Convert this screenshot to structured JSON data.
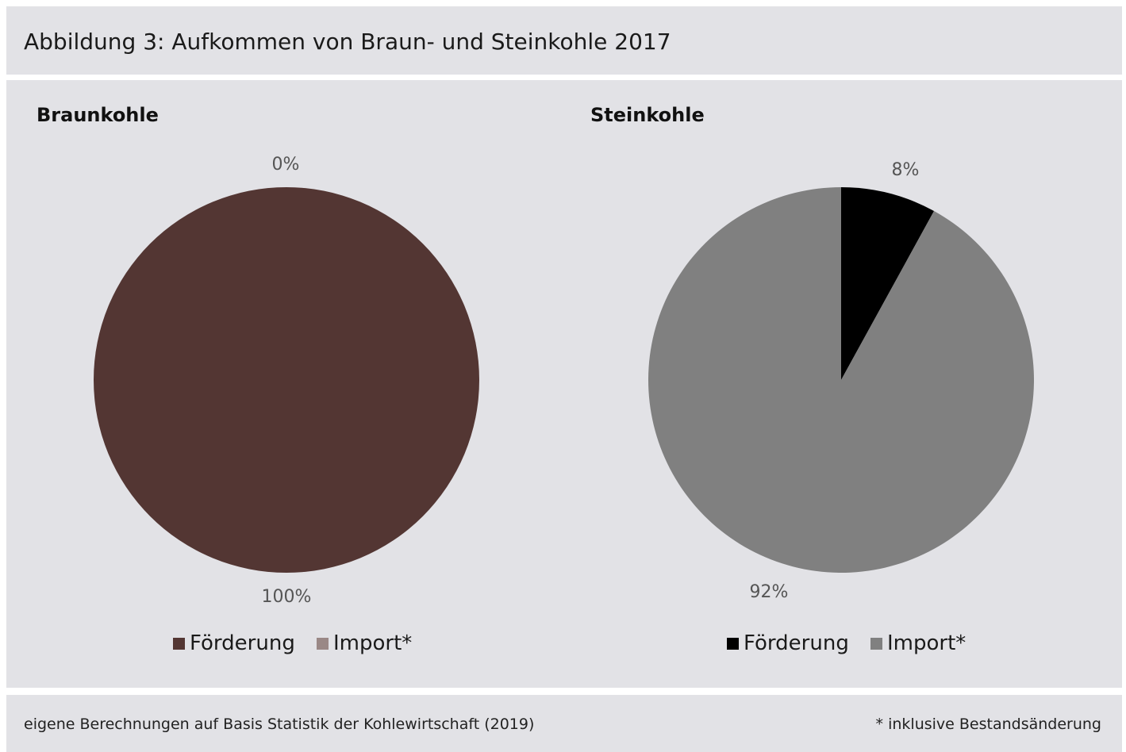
{
  "figure_title": "Abbildung 3: Aufkommen von Braun- und Steinkohle 2017",
  "footer": {
    "source": "eigene Berechnungen auf Basis Statistik der Kohlewirtschaft (2019)",
    "note": "* inklusive Bestandsänderung"
  },
  "chart_data": [
    {
      "type": "pie",
      "title": "Braunkohle",
      "categories": [
        "Förderung",
        "Import*"
      ],
      "values": [
        100,
        0
      ],
      "labels": [
        "100%",
        "0%"
      ],
      "colors": [
        "#533633",
        "#9a8886"
      ]
    },
    {
      "type": "pie",
      "title": "Steinkohle",
      "categories": [
        "Förderung",
        "Import*"
      ],
      "values": [
        8,
        92
      ],
      "labels": [
        "8%",
        "92%"
      ],
      "colors": [
        "#000000",
        "#808080"
      ]
    }
  ]
}
